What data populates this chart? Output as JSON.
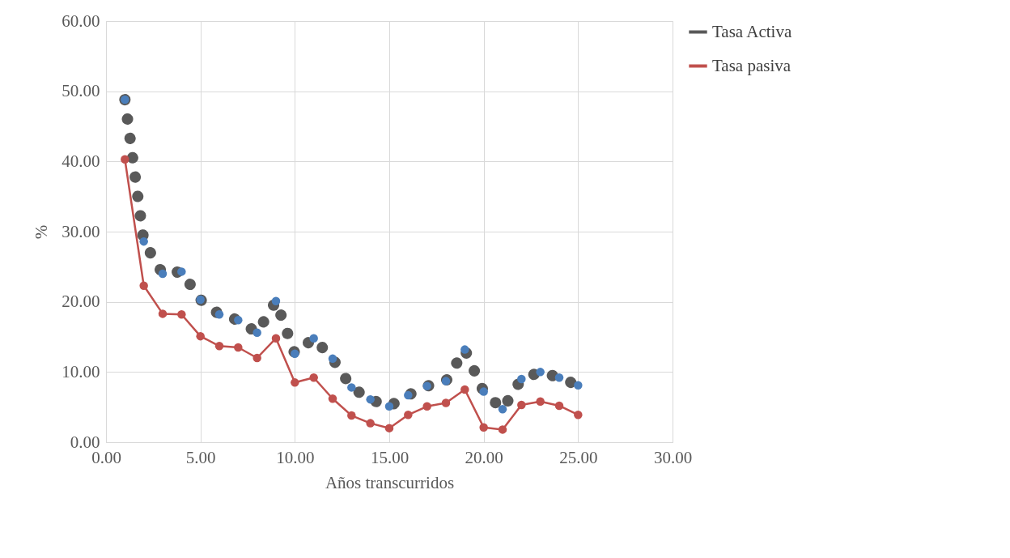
{
  "chart_data": {
    "type": "line",
    "xlabel": "Años transcurridos",
    "ylabel": "%",
    "xlim": [
      0,
      30
    ],
    "xticks": [
      {
        "value": 0,
        "label": "0.00"
      },
      {
        "value": 5,
        "label": "5.00"
      },
      {
        "value": 10,
        "label": "10.00"
      },
      {
        "value": 15,
        "label": "15.00"
      },
      {
        "value": 20,
        "label": "20.00"
      },
      {
        "value": 25,
        "label": "25.00"
      },
      {
        "value": 30,
        "label": "30.00"
      }
    ],
    "ylim": [
      0,
      60
    ],
    "yticks": [
      {
        "value": 0,
        "label": "0.00"
      },
      {
        "value": 10,
        "label": "10.00"
      },
      {
        "value": 20,
        "label": "20.00"
      },
      {
        "value": 30,
        "label": "30.00"
      },
      {
        "value": 40,
        "label": "40.00"
      },
      {
        "value": 50,
        "label": "50.00"
      },
      {
        "value": 60,
        "label": "60.00"
      }
    ],
    "grid": true,
    "legend": "right",
    "marker": "circle",
    "x": [
      1,
      2,
      3,
      4,
      5,
      6,
      7,
      8,
      9,
      10,
      11,
      12,
      13,
      14,
      15,
      16,
      17,
      18,
      19,
      20,
      21,
      22,
      23,
      24,
      25
    ],
    "series": [
      {
        "name": "Tasa Activa",
        "type": "line",
        "color": "#595959",
        "line_style": "dotted",
        "marker": "none",
        "values": [
          48.8,
          28.6,
          24.0,
          24.3,
          20.3,
          18.2,
          17.4,
          15.6,
          20.1,
          12.6,
          14.8,
          11.9,
          7.8,
          6.1,
          5.1,
          6.7,
          8.0,
          8.7,
          13.2,
          7.2,
          4.7,
          9.0,
          10.0,
          9.2,
          8.1
        ]
      },
      {
        "type": "scatter",
        "color": "#4a7ebb",
        "values": [
          48.8,
          28.6,
          24.0,
          24.3,
          20.3,
          18.2,
          17.4,
          15.6,
          20.1,
          12.6,
          14.8,
          11.9,
          7.8,
          6.1,
          5.1,
          6.7,
          8.0,
          8.7,
          13.2,
          7.2,
          4.7,
          9.0,
          10.0,
          9.2,
          8.1
        ]
      },
      {
        "name": "Tasa pasiva",
        "color": "#c0504d",
        "line_style": "solid",
        "values": [
          40.3,
          22.3,
          18.3,
          18.2,
          15.1,
          13.7,
          13.5,
          12.0,
          14.8,
          8.5,
          9.2,
          6.2,
          3.8,
          2.7,
          2.0,
          3.9,
          5.1,
          5.6,
          7.5,
          2.1,
          1.8,
          5.3,
          5.8,
          5.2,
          3.9
        ]
      }
    ]
  }
}
